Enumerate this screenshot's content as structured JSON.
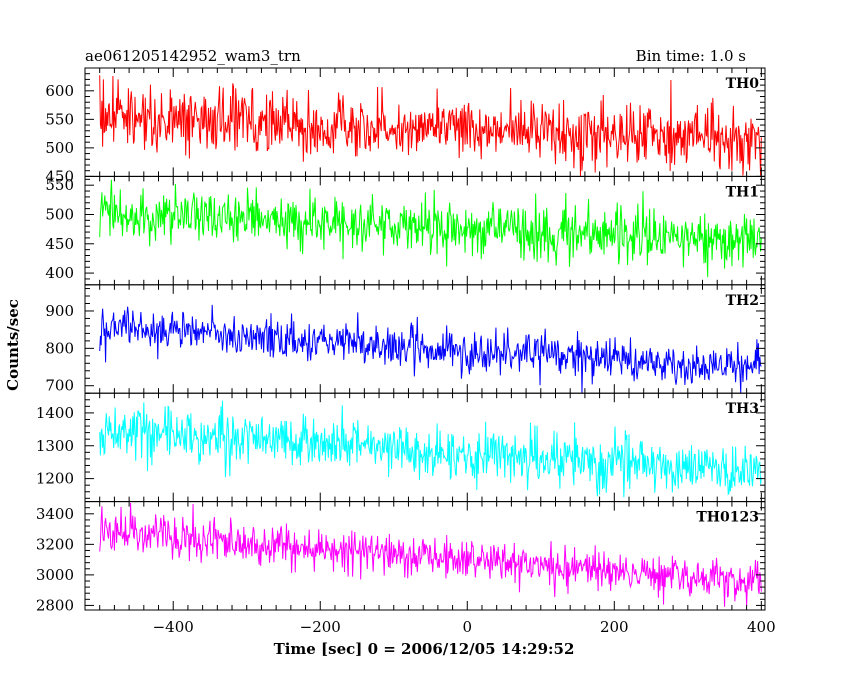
{
  "header": {
    "left_title": "ae061205142952_wam3_trn",
    "right_title": "Bin time: 1.0 s"
  },
  "chart_data": {
    "type": "line",
    "title": "ae061205142952_wam3_trn",
    "subtitle": "Bin time: 1.0 s",
    "xlabel": "Time [sec] 0 = 2006/12/05 14:29:52",
    "ylabel": "Counts/sec",
    "xlim": [
      -520,
      405
    ],
    "xticks": [
      -400,
      -200,
      0,
      200,
      400
    ],
    "x_start": -500,
    "x_end": 400,
    "bin_time": 1.0,
    "grid": false,
    "panels": [
      {
        "name": "TH0",
        "color": "#ff0000",
        "ylim": [
          450,
          640
        ],
        "yticks": [
          450,
          500,
          550,
          600
        ],
        "trend_start": 555,
        "trend_end": 515,
        "scatter": 28
      },
      {
        "name": "TH1",
        "color": "#00ff00",
        "ylim": [
          380,
          565
        ],
        "yticks": [
          400,
          450,
          500,
          550
        ],
        "trend_start": 500,
        "trend_end": 455,
        "scatter": 24
      },
      {
        "name": "TH2",
        "color": "#0000ff",
        "ylim": [
          680,
          970
        ],
        "yticks": [
          700,
          800,
          900
        ],
        "trend_start": 855,
        "trend_end": 745,
        "scatter": 28
      },
      {
        "name": "TH3",
        "color": "#00ffff",
        "ylim": [
          1130,
          1460
        ],
        "yticks": [
          1200,
          1300,
          1400
        ],
        "trend_start": 1350,
        "trend_end": 1220,
        "scatter": 40
      },
      {
        "name": "TH0123",
        "color": "#ff00ff",
        "ylim": [
          2770,
          3480
        ],
        "yticks": [
          2800,
          3000,
          3200,
          3400
        ],
        "trend_start": 3285,
        "trend_end": 2945,
        "scatter": 65
      }
    ]
  }
}
